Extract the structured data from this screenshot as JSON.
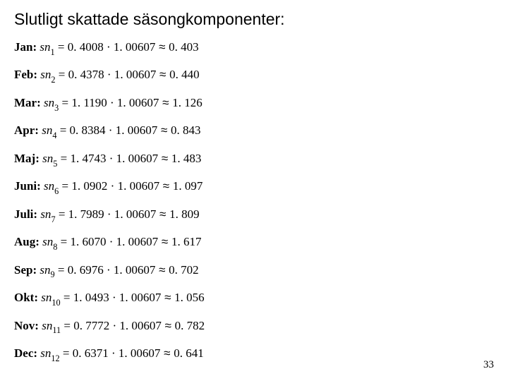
{
  "title": "Slutligt skattade säsongkomponenter:",
  "sn_symbol": "sn",
  "equals": " = ",
  "middot": " · ",
  "approx": " ≈ ",
  "multiplier": "1. 00607",
  "months": [
    {
      "label": "Jan:",
      "sub": "1",
      "raw": "0. 4008",
      "result": "0. 403"
    },
    {
      "label": "Feb:",
      "sub": "2",
      "raw": "0. 4378",
      "result": "0. 440"
    },
    {
      "label": "Mar:",
      "sub": "3",
      "raw": "1. 1190",
      "result": "1. 126"
    },
    {
      "label": "Apr:",
      "sub": "4",
      "raw": "0. 8384",
      "result": "0. 843"
    },
    {
      "label": "Maj:",
      "sub": "5",
      "raw": "1. 4743",
      "result": "1. 483"
    },
    {
      "label": "Juni:",
      "sub": "6",
      "raw": "1. 0902",
      "result": "1. 097"
    },
    {
      "label": "Juli: ",
      "sub": "7",
      "raw": "1. 7989",
      "result": "1. 809"
    },
    {
      "label": "Aug:",
      "sub": "8",
      "raw": "1. 6070",
      "result": "1. 617"
    },
    {
      "label": "Sep:",
      "sub": "9",
      "raw": "0. 6976",
      "result": "0. 702"
    },
    {
      "label": "Okt:",
      "sub": "10",
      "raw": "1. 0493",
      "result": "1. 056"
    },
    {
      "label": "Nov:",
      "sub": "11",
      "raw": "0. 7772",
      "result": "0. 782"
    },
    {
      "label": "Dec:",
      "sub": "12",
      "raw": "0. 6371",
      "result": "0. 641"
    }
  ],
  "page_number": "33",
  "colors": {
    "background": "#ffffff",
    "text": "#000000"
  },
  "typography": {
    "title_font": "Arial",
    "title_size_pt": 17,
    "body_font": "Times New Roman",
    "body_size_pt": 13
  }
}
